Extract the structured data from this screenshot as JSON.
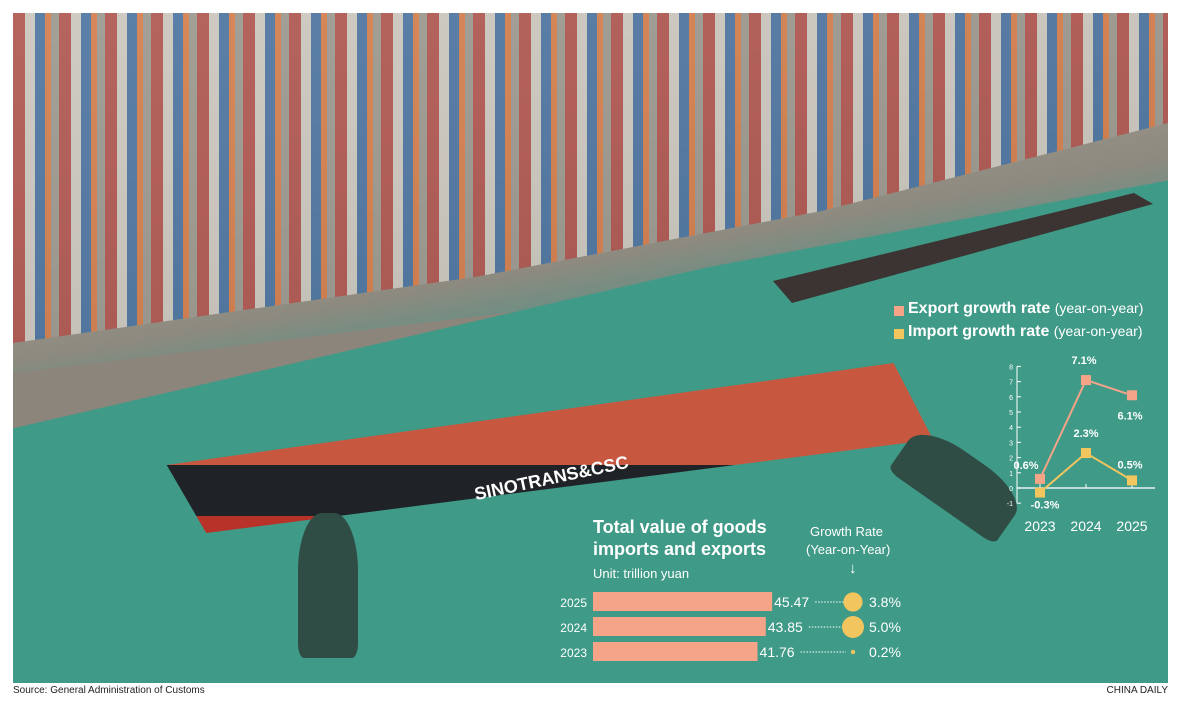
{
  "colors": {
    "export": "#f5a488",
    "import": "#f3c55e",
    "bar": "#f5a488",
    "circle": "#f3c55e",
    "text": "#ffffff"
  },
  "photo": {
    "ship_name": "SINOTRANS&CSC"
  },
  "legend": [
    {
      "label": "Export growth rate",
      "qualifier": "(year-on-year)",
      "color": "#f5a488"
    },
    {
      "label": "Import growth rate",
      "qualifier": "(year-on-year)",
      "color": "#f3c55e"
    }
  ],
  "bar_panel": {
    "title_line1": "Total value of goods",
    "title_line2": "imports and exports",
    "unit": "Unit: trillion yuan",
    "growth_header_line1": "Growth Rate",
    "growth_header_line2": "(Year-on-Year)",
    "arrow": "↓"
  },
  "chart_data": [
    {
      "type": "line",
      "x": [
        "2023",
        "2024",
        "2025"
      ],
      "ylim": [
        -1,
        8
      ],
      "yticks": [
        "-1",
        "0",
        "1",
        "2",
        "3",
        "4",
        "5",
        "6",
        "7",
        "8"
      ],
      "grid": false,
      "legend_placement": "top",
      "series": [
        {
          "name": "Export growth rate (year-on-year)",
          "values": [
            0.6,
            7.1,
            6.1
          ],
          "labels": [
            "0.6%",
            "7.1%",
            "6.1%"
          ]
        },
        {
          "name": "Import growth rate (year-on-year)",
          "values": [
            -0.3,
            2.3,
            0.5
          ],
          "labels": [
            "-0.3%",
            "2.3%",
            "0.5%"
          ]
        }
      ]
    },
    {
      "type": "bar",
      "orientation": "horizontal",
      "title": "Total value of goods imports and exports",
      "unit": "Unit: trillion yuan",
      "categories": [
        "2025",
        "2024",
        "2023"
      ],
      "values": [
        45.47,
        43.85,
        41.76
      ],
      "value_labels": [
        "45.47",
        "43.85",
        "41.76"
      ],
      "growth_rate": [
        3.8,
        5.0,
        0.2
      ],
      "growth_labels": [
        "3.8%",
        "5.0%",
        "0.2%"
      ]
    }
  ],
  "footer": {
    "source": "Source: General Administration of Customs",
    "brand": "CHINA DAILY"
  }
}
